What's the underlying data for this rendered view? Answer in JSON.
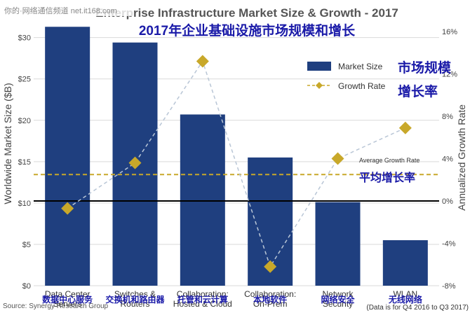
{
  "watermark": "你的·网络通信频道 net.it168.com",
  "chart_data": {
    "type": "bar+line",
    "title": "Enterprise Infrastructure Market Size & Growth - 2017",
    "subtitle_cn": "2017年企业基础设施市场规模和增长",
    "categories": [
      {
        "en": [
          "Data Center",
          "Servers"
        ],
        "cn": "数据中心服务"
      },
      {
        "en": [
          "Switches &",
          "Routers"
        ],
        "cn": "交换机和路由器"
      },
      {
        "en": [
          "Collaboration:",
          "Hosted & Cloud"
        ],
        "cn": "托管和云计算"
      },
      {
        "en": [
          "Collaboration:",
          "On-Prem"
        ],
        "cn": "本地软件"
      },
      {
        "en": [
          "Network",
          "Security"
        ],
        "cn": "网络安全"
      },
      {
        "en": [
          "WLAN"
        ],
        "cn": "无线网络"
      }
    ],
    "series": [
      {
        "name": "Market Size",
        "name_cn": "市场规模",
        "axis": "left",
        "type": "bar",
        "color": "#1f3f7f",
        "values": [
          31.3,
          29.4,
          20.7,
          15.5,
          10.1,
          5.5
        ]
      },
      {
        "name": "Growth Rate",
        "name_cn": "增长率",
        "axis": "right",
        "type": "line",
        "color": "#c8a82a",
        "values": [
          -0.7,
          3.6,
          13.2,
          -6.2,
          4.0,
          6.9
        ]
      }
    ],
    "average_growth": {
      "label": "Average Growth Rate",
      "label_cn": "平均增长率",
      "value": 2.5
    },
    "y_left": {
      "label": "Worldwide Market Size ($B)",
      "ticks": [
        "$0",
        "$5",
        "$10",
        "$15",
        "$20",
        "$25",
        "$30"
      ],
      "min": 0,
      "max": 32
    },
    "y_right": {
      "label": "Annualized Growth Rate",
      "ticks": [
        "-8%",
        "-4%",
        "0%",
        "4%",
        "8%",
        "12%",
        "16%"
      ],
      "min": -8,
      "max": 17
    },
    "source": "Source: Synergy Research Group",
    "note": "(Data is for Q4 2016 to Q3 2017)"
  }
}
